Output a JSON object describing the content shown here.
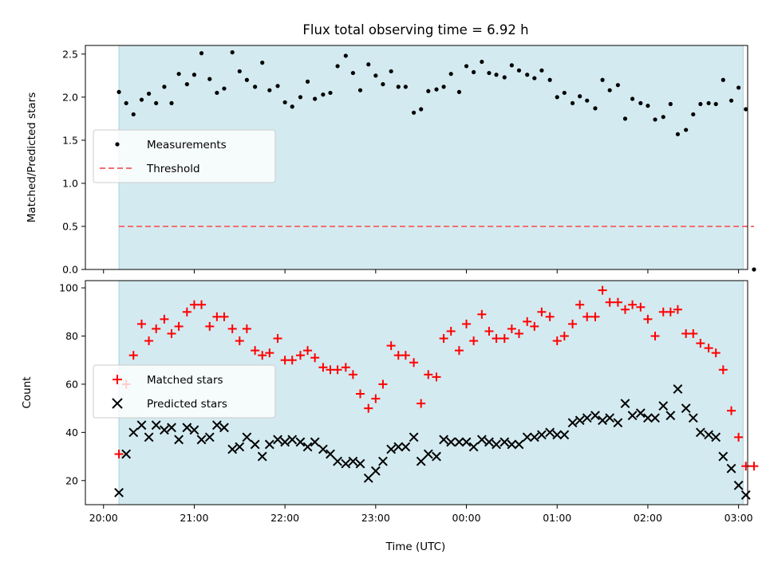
{
  "figure": {
    "title": "Flux total observing time = 6.92 h",
    "xlabel": "Time (UTC)",
    "xticks": [
      "20:00",
      "21:00",
      "22:00",
      "23:00",
      "00:00",
      "01:00",
      "02:00",
      "03:00"
    ]
  },
  "colors": {
    "observing_window": "#d3eaf0",
    "measurements": "#000000",
    "threshold": "#f07070",
    "matched": "#ff0000",
    "predicted": "#000000"
  },
  "chart_data": [
    {
      "type": "scatter",
      "ylabel": "Matched/Predicted stars",
      "xlim": [
        -0.2,
        7.1
      ],
      "ylim": [
        0,
        2.6
      ],
      "yticks": [
        "0.0",
        "0.5",
        "1.0",
        "1.5",
        "2.0",
        "2.5"
      ],
      "observing_window": [
        0.17,
        7.05
      ],
      "legend": {
        "position": "center-left",
        "entries": [
          "Measurements",
          "Threshold"
        ]
      },
      "threshold": {
        "name": "Threshold",
        "y": 0.5,
        "x": [
          0.17,
          7.17
        ]
      },
      "series": [
        {
          "name": "Measurements",
          "marker": "dot",
          "x": [
            0.17,
            0.25,
            0.33,
            0.42,
            0.5,
            0.58,
            0.67,
            0.75,
            0.83,
            0.92,
            1.0,
            1.08,
            1.17,
            1.25,
            1.33,
            1.42,
            1.5,
            1.58,
            1.67,
            1.75,
            1.83,
            1.92,
            2.0,
            2.08,
            2.17,
            2.25,
            2.33,
            2.42,
            2.5,
            2.58,
            2.67,
            2.75,
            2.83,
            2.92,
            3.0,
            3.08,
            3.17,
            3.25,
            3.33,
            3.42,
            3.5,
            3.58,
            3.67,
            3.75,
            3.83,
            3.92,
            4.0,
            4.08,
            4.17,
            4.25,
            4.33,
            4.42,
            4.5,
            4.58,
            4.67,
            4.75,
            4.83,
            4.92,
            5.0,
            5.08,
            5.17,
            5.25,
            5.33,
            5.42,
            5.5,
            5.58,
            5.67,
            5.75,
            5.83,
            5.92,
            6.0,
            6.08,
            6.17,
            6.25,
            6.33,
            6.42,
            6.5,
            6.58,
            6.67,
            6.75,
            6.83,
            6.92,
            7.0,
            7.08,
            7.17
          ],
          "y": [
            2.06,
            1.93,
            1.8,
            1.97,
            2.04,
            1.93,
            2.12,
            1.93,
            2.27,
            2.15,
            2.26,
            2.51,
            2.21,
            2.05,
            2.1,
            2.52,
            2.3,
            2.2,
            2.12,
            2.4,
            2.08,
            2.13,
            1.94,
            1.89,
            2.0,
            2.18,
            1.98,
            2.03,
            2.05,
            2.36,
            2.48,
            2.28,
            2.08,
            2.38,
            2.25,
            2.15,
            2.3,
            2.12,
            2.12,
            1.82,
            1.86,
            2.07,
            2.09,
            2.12,
            2.27,
            2.06,
            2.36,
            2.29,
            2.41,
            2.28,
            2.26,
            2.23,
            2.37,
            2.31,
            2.26,
            2.22,
            2.31,
            2.2,
            2.0,
            2.05,
            1.93,
            2.01,
            1.96,
            1.87,
            2.2,
            2.08,
            2.14,
            1.75,
            1.98,
            1.93,
            1.9,
            1.74,
            1.77,
            1.92,
            1.57,
            1.62,
            1.8,
            1.92,
            1.93,
            1.92,
            2.2,
            1.96,
            2.11,
            1.86,
            0.0
          ]
        }
      ]
    },
    {
      "type": "scatter",
      "ylabel": "Count",
      "xlim": [
        -0.2,
        7.1
      ],
      "ylim": [
        10,
        103
      ],
      "yticks": [
        "20",
        "40",
        "60",
        "80",
        "100"
      ],
      "observing_window": [
        0.17,
        7.05
      ],
      "legend": {
        "position": "center-left",
        "entries": [
          "Matched stars",
          "Predicted stars"
        ]
      },
      "series": [
        {
          "name": "Matched stars",
          "marker": "plus",
          "x": [
            0.17,
            0.25,
            0.33,
            0.42,
            0.5,
            0.58,
            0.67,
            0.75,
            0.83,
            0.92,
            1.0,
            1.08,
            1.17,
            1.25,
            1.33,
            1.42,
            1.5,
            1.58,
            1.67,
            1.75,
            1.83,
            1.92,
            2.0,
            2.08,
            2.17,
            2.25,
            2.33,
            2.42,
            2.5,
            2.58,
            2.67,
            2.75,
            2.83,
            2.92,
            3.0,
            3.08,
            3.17,
            3.25,
            3.33,
            3.42,
            3.5,
            3.58,
            3.67,
            3.75,
            3.83,
            3.92,
            4.0,
            4.08,
            4.17,
            4.25,
            4.33,
            4.42,
            4.5,
            4.58,
            4.67,
            4.75,
            4.83,
            4.92,
            5.0,
            5.08,
            5.17,
            5.25,
            5.33,
            5.42,
            5.5,
            5.58,
            5.67,
            5.75,
            5.83,
            5.92,
            6.0,
            6.08,
            6.17,
            6.25,
            6.33,
            6.42,
            6.5,
            6.58,
            6.67,
            6.75,
            6.83,
            6.92,
            7.0,
            7.08,
            7.17
          ],
          "y": [
            31,
            60,
            72,
            85,
            78,
            83,
            87,
            81,
            84,
            90,
            93,
            93,
            84,
            88,
            88,
            83,
            78,
            83,
            74,
            72,
            73,
            79,
            70,
            70,
            72,
            74,
            71,
            67,
            66,
            66,
            67,
            64,
            56,
            50,
            54,
            60,
            76,
            72,
            72,
            69,
            52,
            64,
            63,
            79,
            82,
            74,
            85,
            78,
            89,
            82,
            79,
            79,
            83,
            81,
            86,
            84,
            90,
            88,
            78,
            80,
            85,
            93,
            88,
            88,
            99,
            94,
            94,
            91,
            93,
            92,
            87,
            80,
            90,
            90,
            91,
            81,
            81,
            77,
            75,
            73,
            66,
            49,
            38,
            26,
            26
          ]
        },
        {
          "name": "Predicted stars",
          "marker": "x",
          "x": [
            0.17,
            0.25,
            0.33,
            0.42,
            0.5,
            0.58,
            0.67,
            0.75,
            0.83,
            0.92,
            1.0,
            1.08,
            1.17,
            1.25,
            1.33,
            1.42,
            1.5,
            1.58,
            1.67,
            1.75,
            1.83,
            1.92,
            2.0,
            2.08,
            2.17,
            2.25,
            2.33,
            2.42,
            2.5,
            2.58,
            2.67,
            2.75,
            2.83,
            2.92,
            3.0,
            3.08,
            3.17,
            3.25,
            3.33,
            3.42,
            3.5,
            3.58,
            3.67,
            3.75,
            3.83,
            3.92,
            4.0,
            4.08,
            4.17,
            4.25,
            4.33,
            4.42,
            4.5,
            4.58,
            4.67,
            4.75,
            4.83,
            4.92,
            5.0,
            5.08,
            5.17,
            5.25,
            5.33,
            5.42,
            5.5,
            5.58,
            5.67,
            5.75,
            5.83,
            5.92,
            6.0,
            6.08,
            6.17,
            6.25,
            6.33,
            6.42,
            6.5,
            6.58,
            6.67,
            6.75,
            6.83,
            6.92,
            7.0,
            7.08
          ],
          "y": [
            15,
            31,
            40,
            43,
            38,
            43,
            41,
            42,
            37,
            42,
            41,
            37,
            38,
            43,
            42,
            33,
            34,
            38,
            35,
            30,
            35,
            37,
            36,
            37,
            36,
            34,
            36,
            33,
            31,
            28,
            27,
            28,
            27,
            21,
            24,
            28,
            33,
            34,
            34,
            38,
            28,
            31,
            30,
            37,
            36,
            36,
            36,
            34,
            37,
            36,
            35,
            36,
            35,
            35,
            38,
            38,
            39,
            40,
            39,
            39,
            44,
            45,
            46,
            47,
            45,
            46,
            44,
            52,
            47,
            48,
            46,
            46,
            51,
            47,
            58,
            50,
            46,
            40,
            39,
            38,
            30,
            25,
            18,
            14
          ]
        }
      ]
    }
  ]
}
